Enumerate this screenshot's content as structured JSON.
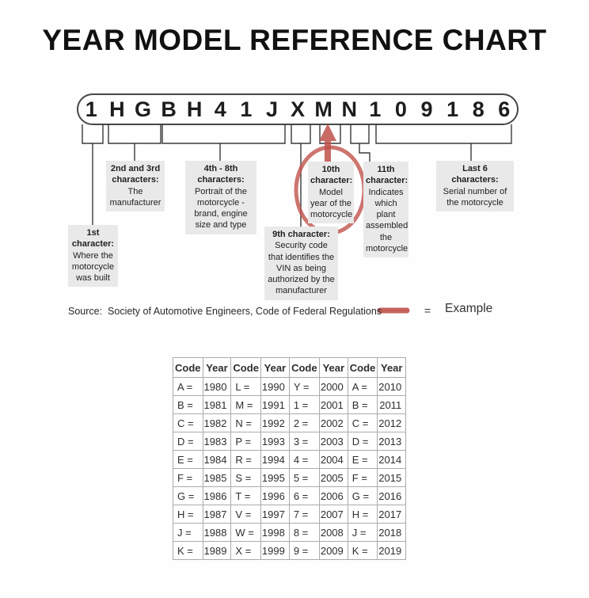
{
  "title": "YEAR MODEL REFERENCE CHART",
  "vin": {
    "characters": [
      "1",
      "H",
      "G",
      "B",
      "H",
      "4",
      "1",
      "J",
      "X",
      "M",
      "N",
      "1",
      "0",
      "9",
      "1",
      "8",
      "6"
    ]
  },
  "annotations": {
    "first": {
      "heading": "1st character:",
      "body": "Where the motorcycle was built"
    },
    "second_third": {
      "heading": "2nd and 3rd characters:",
      "body": "The manufacturer"
    },
    "fourth_eighth": {
      "heading": "4th - 8th characters:",
      "body": "Portrait of the motorcycle - brand, engine size and type"
    },
    "ninth": {
      "heading": "9th character:",
      "body": "Security code that identifies the VIN as being authorized by the manufacturer"
    },
    "tenth": {
      "heading": "10th character:",
      "body": "Model year of the motorcycle",
      "highlighted": true
    },
    "eleventh": {
      "heading": "11th character:",
      "body": "Indicates which plant assembled the motorcycle"
    },
    "last_six": {
      "heading": "Last 6 characters:",
      "body": "Serial number of the motorcycle"
    }
  },
  "source": {
    "text": "Source:  Society of Automotive Engineers, Code of Federal Regulations"
  },
  "legend": {
    "equals": "=",
    "label": "Example"
  },
  "table": {
    "headers": [
      "Code",
      "Year",
      "Code",
      "Year",
      "Code",
      "Year",
      "Code",
      "Year"
    ],
    "rows": [
      [
        "A =",
        "1980",
        "L =",
        "1990",
        "Y =",
        "2000",
        "A =",
        "2010"
      ],
      [
        "B =",
        "1981",
        "M =",
        "1991",
        "1 =",
        "2001",
        "B =",
        "2011"
      ],
      [
        "C =",
        "1982",
        "N =",
        "1992",
        "2 =",
        "2002",
        "C =",
        "2012"
      ],
      [
        "D =",
        "1983",
        "P =",
        "1993",
        "3 =",
        "2003",
        "D =",
        "2013"
      ],
      [
        "E =",
        "1984",
        "R =",
        "1994",
        "4 =",
        "2004",
        "E =",
        "2014"
      ],
      [
        "F =",
        "1985",
        "S =",
        "1995",
        "5 =",
        "2005",
        "F =",
        "2015"
      ],
      [
        "G =",
        "1986",
        "T =",
        "1996",
        "6 =",
        "2006",
        "G =",
        "2016"
      ],
      [
        "H =",
        "1987",
        "V =",
        "1997",
        "7 =",
        "2007",
        "H =",
        "2017"
      ],
      [
        "J =",
        "1988",
        "W =",
        "1998",
        "8 =",
        "2008",
        "J =",
        "2018"
      ],
      [
        "K =",
        "1989",
        "X =",
        "1999",
        "9 =",
        "2009",
        "K =",
        "2019"
      ]
    ],
    "highlighted_entry": "M = 1991"
  },
  "colors": {
    "accent_red": "#c0524b",
    "box_bg": "#e9e9e9",
    "line": "#3a3a3a",
    "table_border": "#ababab"
  }
}
